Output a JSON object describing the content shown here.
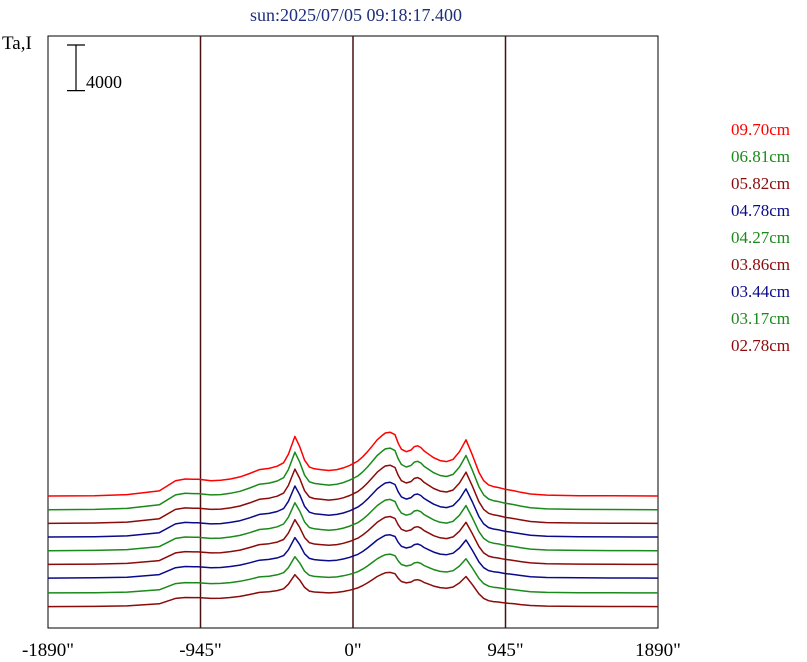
{
  "chart_data": {
    "type": "line",
    "title": "sun:2025/07/05 09:18:17.400",
    "ylabel": "Ta,I",
    "scale_bar_label": "4000",
    "scale_bar_value": 4000,
    "xlim": [
      -1890,
      1890
    ],
    "xticks": [
      -1890,
      -945,
      0,
      945,
      1890
    ],
    "xtick_labels": [
      "-1890\"",
      "-945\"",
      "0\"",
      "945\"",
      "1890\""
    ],
    "vertical_markers": [
      -945,
      0,
      945
    ],
    "x": [
      -1890,
      -1600,
      -1400,
      -1200,
      -1100,
      -1040,
      -990,
      -960,
      -930,
      -880,
      -820,
      -760,
      -700,
      -640,
      -580,
      -520,
      -470,
      -430,
      -400,
      -360,
      -330,
      -300,
      -270,
      -240,
      -200,
      -150,
      -100,
      -60,
      -20,
      0,
      30,
      60,
      90,
      120,
      150,
      180,
      200,
      230,
      260,
      280,
      300,
      330,
      360,
      380,
      400,
      420,
      440,
      470,
      500,
      540,
      580,
      620,
      660,
      700,
      740,
      780,
      810,
      840,
      870,
      900,
      920,
      940,
      970,
      1000,
      1040,
      1100,
      1200,
      1400,
      1600,
      1890
    ],
    "series": [
      {
        "name": "09.70cm",
        "color": "#ff0000",
        "offset": 10000,
        "amp": 10500,
        "peak": 5600,
        "shape": [
          0,
          0.02,
          0.08,
          0.3,
          0.9,
          1,
          0.98,
          0.98,
          0.95,
          0.9,
          0.92,
          1.0,
          1.12,
          1.32,
          1.55,
          1.62,
          1.75,
          1.95,
          2.45,
          3.5,
          2.9,
          2.1,
          1.7,
          1.6,
          1.55,
          1.5,
          1.55,
          1.65,
          1.8,
          1.9,
          2.05,
          2.3,
          2.6,
          2.95,
          3.3,
          3.55,
          3.7,
          3.75,
          3.6,
          3.1,
          2.75,
          2.6,
          2.7,
          2.9,
          2.95,
          2.85,
          2.65,
          2.45,
          2.25,
          2.08,
          2.02,
          2.15,
          2.6,
          3.3,
          2.4,
          1.4,
          0.9,
          0.65,
          0.55,
          0.5,
          0.45,
          0.4,
          0.35,
          0.3,
          0.22,
          0.12,
          0.05,
          0.02,
          0.01,
          0
        ]
      },
      {
        "name": "06.81cm",
        "color": "#1a8a1a",
        "offset": 8800,
        "amp": 9000,
        "peak": 5400,
        "shape": [
          0,
          0.02,
          0.08,
          0.3,
          0.9,
          1,
          0.98,
          0.98,
          0.95,
          0.9,
          0.92,
          1.0,
          1.12,
          1.32,
          1.55,
          1.62,
          1.75,
          1.95,
          2.45,
          3.5,
          2.9,
          2.1,
          1.7,
          1.6,
          1.55,
          1.5,
          1.55,
          1.65,
          1.8,
          1.9,
          2.05,
          2.3,
          2.6,
          2.95,
          3.3,
          3.55,
          3.7,
          3.75,
          3.6,
          3.1,
          2.75,
          2.6,
          2.7,
          2.9,
          2.95,
          2.85,
          2.65,
          2.45,
          2.25,
          2.08,
          2.02,
          2.15,
          2.6,
          3.3,
          2.4,
          1.4,
          0.9,
          0.65,
          0.55,
          0.5,
          0.45,
          0.4,
          0.35,
          0.3,
          0.22,
          0.12,
          0.05,
          0.02,
          0.01,
          0
        ]
      },
      {
        "name": "05.82cm",
        "color": "#8b0a0a",
        "offset": 7600,
        "amp": 8400,
        "peak": 5100,
        "shape": [
          0,
          0.02,
          0.08,
          0.3,
          0.9,
          1,
          0.98,
          0.98,
          0.95,
          0.9,
          0.92,
          1.0,
          1.12,
          1.32,
          1.55,
          1.62,
          1.75,
          1.95,
          2.45,
          3.5,
          2.9,
          2.1,
          1.7,
          1.6,
          1.55,
          1.5,
          1.55,
          1.65,
          1.8,
          1.9,
          2.05,
          2.3,
          2.6,
          2.95,
          3.3,
          3.55,
          3.7,
          3.75,
          3.6,
          3.1,
          2.75,
          2.6,
          2.7,
          2.9,
          2.95,
          2.85,
          2.65,
          2.45,
          2.25,
          2.08,
          2.02,
          2.15,
          2.6,
          3.3,
          2.4,
          1.4,
          0.9,
          0.65,
          0.55,
          0.5,
          0.45,
          0.4,
          0.35,
          0.3,
          0.22,
          0.12,
          0.05,
          0.02,
          0.01,
          0
        ]
      },
      {
        "name": "04.78cm",
        "color": "#0a0a8a",
        "offset": 6400,
        "amp": 7800,
        "peak": 4800,
        "shape": [
          0,
          0.02,
          0.08,
          0.3,
          0.9,
          1,
          0.98,
          0.98,
          0.95,
          0.9,
          0.92,
          1.0,
          1.12,
          1.32,
          1.55,
          1.62,
          1.75,
          1.95,
          2.45,
          3.5,
          2.9,
          2.1,
          1.7,
          1.6,
          1.55,
          1.5,
          1.55,
          1.65,
          1.8,
          1.9,
          2.05,
          2.3,
          2.6,
          2.95,
          3.3,
          3.55,
          3.7,
          3.75,
          3.6,
          3.1,
          2.75,
          2.6,
          2.7,
          2.9,
          2.95,
          2.85,
          2.65,
          2.45,
          2.25,
          2.08,
          2.02,
          2.15,
          2.6,
          3.3,
          2.4,
          1.4,
          0.9,
          0.65,
          0.55,
          0.5,
          0.45,
          0.4,
          0.35,
          0.3,
          0.22,
          0.12,
          0.05,
          0.02,
          0.01,
          0
        ]
      },
      {
        "name": "04.27cm",
        "color": "#1a8a1a",
        "offset": 5200,
        "amp": 7300,
        "peak": 4500,
        "shape": [
          0,
          0.02,
          0.08,
          0.3,
          0.9,
          1,
          0.98,
          0.98,
          0.95,
          0.9,
          0.92,
          1.0,
          1.12,
          1.32,
          1.55,
          1.62,
          1.75,
          1.95,
          2.45,
          3.5,
          2.9,
          2.1,
          1.7,
          1.6,
          1.55,
          1.5,
          1.55,
          1.65,
          1.8,
          1.9,
          2.05,
          2.3,
          2.6,
          2.95,
          3.3,
          3.55,
          3.7,
          3.75,
          3.6,
          3.1,
          2.75,
          2.6,
          2.7,
          2.9,
          2.95,
          2.85,
          2.65,
          2.45,
          2.25,
          2.08,
          2.02,
          2.15,
          2.6,
          3.3,
          2.4,
          1.4,
          0.9,
          0.65,
          0.55,
          0.5,
          0.45,
          0.4,
          0.35,
          0.3,
          0.22,
          0.12,
          0.05,
          0.02,
          0.01,
          0
        ]
      },
      {
        "name": "03.86cm",
        "color": "#8b0a0a",
        "offset": 4000,
        "amp": 6900,
        "peak": 4200,
        "shape": [
          0,
          0.02,
          0.08,
          0.3,
          0.9,
          1,
          0.98,
          0.98,
          0.95,
          0.9,
          0.92,
          1.0,
          1.12,
          1.32,
          1.55,
          1.62,
          1.75,
          1.95,
          2.45,
          3.5,
          2.9,
          2.1,
          1.7,
          1.6,
          1.55,
          1.5,
          1.55,
          1.65,
          1.8,
          1.9,
          2.05,
          2.3,
          2.6,
          2.95,
          3.3,
          3.55,
          3.7,
          3.75,
          3.6,
          3.1,
          2.75,
          2.6,
          2.7,
          2.9,
          2.95,
          2.85,
          2.65,
          2.45,
          2.25,
          2.08,
          2.02,
          2.15,
          2.6,
          3.3,
          2.4,
          1.4,
          0.9,
          0.65,
          0.55,
          0.5,
          0.45,
          0.4,
          0.35,
          0.3,
          0.22,
          0.12,
          0.05,
          0.02,
          0.01,
          0
        ]
      },
      {
        "name": "03.44cm",
        "color": "#0a0a8a",
        "offset": 2800,
        "amp": 6400,
        "peak": 3800,
        "shape": [
          0,
          0.02,
          0.08,
          0.3,
          0.9,
          1,
          0.98,
          0.98,
          0.95,
          0.9,
          0.92,
          1.0,
          1.12,
          1.32,
          1.55,
          1.62,
          1.75,
          1.95,
          2.45,
          3.5,
          2.9,
          2.1,
          1.7,
          1.6,
          1.55,
          1.5,
          1.55,
          1.65,
          1.8,
          1.9,
          2.05,
          2.3,
          2.6,
          2.95,
          3.3,
          3.55,
          3.7,
          3.75,
          3.6,
          3.1,
          2.75,
          2.6,
          2.7,
          2.9,
          2.95,
          2.85,
          2.65,
          2.45,
          2.25,
          2.08,
          2.02,
          2.15,
          2.6,
          3.3,
          2.4,
          1.4,
          0.9,
          0.65,
          0.55,
          0.5,
          0.45,
          0.4,
          0.35,
          0.3,
          0.22,
          0.12,
          0.05,
          0.02,
          0.01,
          0
        ]
      },
      {
        "name": "03.17cm",
        "color": "#1a8a1a",
        "offset": 1500,
        "amp": 6000,
        "peak": 3400,
        "shape": [
          0,
          0.02,
          0.08,
          0.3,
          0.9,
          1,
          0.98,
          0.98,
          0.95,
          0.9,
          0.92,
          1.0,
          1.12,
          1.32,
          1.55,
          1.62,
          1.75,
          1.95,
          2.45,
          3.5,
          2.9,
          2.1,
          1.7,
          1.6,
          1.55,
          1.5,
          1.55,
          1.65,
          1.8,
          1.9,
          2.05,
          2.3,
          2.6,
          2.95,
          3.3,
          3.55,
          3.7,
          3.75,
          3.6,
          3.1,
          2.75,
          2.6,
          2.7,
          2.9,
          2.95,
          2.85,
          2.65,
          2.45,
          2.25,
          2.08,
          2.02,
          2.15,
          2.6,
          3.3,
          2.4,
          1.4,
          0.9,
          0.65,
          0.55,
          0.5,
          0.45,
          0.4,
          0.35,
          0.3,
          0.22,
          0.12,
          0.05,
          0.02,
          0.01,
          0
        ]
      },
      {
        "name": "02.78cm",
        "color": "#8b0a0a",
        "offset": 300,
        "amp": 5600,
        "peak": 3000,
        "shape": [
          0,
          0.02,
          0.08,
          0.3,
          0.9,
          1,
          0.98,
          0.98,
          0.95,
          0.9,
          0.92,
          1.0,
          1.12,
          1.32,
          1.55,
          1.62,
          1.75,
          1.95,
          2.45,
          3.5,
          2.9,
          2.1,
          1.7,
          1.6,
          1.55,
          1.5,
          1.55,
          1.65,
          1.8,
          1.9,
          2.05,
          2.3,
          2.6,
          2.95,
          3.3,
          3.55,
          3.7,
          3.75,
          3.6,
          3.1,
          2.75,
          2.6,
          2.7,
          2.9,
          2.95,
          2.85,
          2.65,
          2.45,
          2.25,
          2.08,
          2.02,
          2.15,
          2.6,
          3.3,
          2.4,
          1.4,
          0.9,
          0.65,
          0.55,
          0.5,
          0.45,
          0.4,
          0.35,
          0.3,
          0.22,
          0.12,
          0.05,
          0.02,
          0.01,
          0
        ]
      }
    ],
    "ylim": [
      0,
      22000
    ],
    "grid": false,
    "legend_placement": "right"
  }
}
